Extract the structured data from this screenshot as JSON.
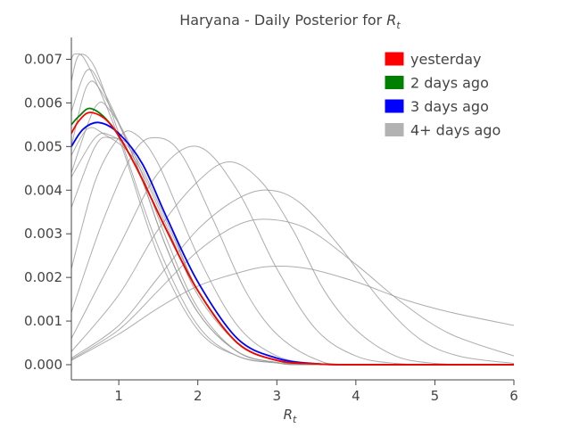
{
  "chart_data": {
    "type": "line",
    "title_prefix": "Haryana - Daily Posterior for ",
    "title_var": "R",
    "title_sub": "t",
    "xlabel_var": "R",
    "xlabel_sub": "t",
    "ylabel": "",
    "xlim": [
      0.4,
      6
    ],
    "ylim": [
      0,
      0.0075
    ],
    "x_ticks": [
      1,
      2,
      3,
      4,
      5,
      6
    ],
    "x_tick_labels": [
      "1",
      "2",
      "3",
      "4",
      "5",
      "6"
    ],
    "y_ticks": [
      0,
      0.001,
      0.002,
      0.003,
      0.004,
      0.005,
      0.006,
      0.007
    ],
    "y_tick_labels": [
      "0.000",
      "0.001",
      "0.002",
      "0.003",
      "0.004",
      "0.005",
      "0.006",
      "0.007"
    ],
    "grid": false,
    "legend_position": "top-right",
    "legend": [
      {
        "label": "yesterday",
        "color": "#ff0000"
      },
      {
        "label": "2 days ago",
        "color": "#008000"
      },
      {
        "label": "3 days ago",
        "color": "#0000ff"
      },
      {
        "label": "4+ days ago",
        "color": "#b2b2b2"
      }
    ],
    "series": [
      {
        "group": "4+ days ago",
        "color": "#999999",
        "points": [
          [
            0.4,
            0.007
          ],
          [
            0.45,
            0.00712
          ],
          [
            0.6,
            0.0069
          ],
          [
            1.0,
            0.0052
          ],
          [
            1.5,
            0.0025
          ],
          [
            2.0,
            0.0008
          ],
          [
            2.5,
            0.0002
          ],
          [
            3.0,
            4e-05
          ],
          [
            3.5,
            0.0
          ],
          [
            6,
            0.0
          ]
        ]
      },
      {
        "group": "4+ days ago",
        "color": "#999999",
        "points": [
          [
            0.4,
            0.0065
          ],
          [
            0.5,
            0.0071
          ],
          [
            0.7,
            0.0068
          ],
          [
            1.0,
            0.0053
          ],
          [
            1.5,
            0.0027
          ],
          [
            2.0,
            0.0009
          ],
          [
            2.5,
            0.0002
          ],
          [
            3.0,
            4e-05
          ],
          [
            3.5,
            0.0
          ],
          [
            6,
            0.0
          ]
        ]
      },
      {
        "group": "4+ days ago",
        "color": "#999999",
        "points": [
          [
            0.4,
            0.0058
          ],
          [
            0.6,
            0.00675
          ],
          [
            0.8,
            0.0063
          ],
          [
            1.2,
            0.0047
          ],
          [
            1.6,
            0.0027
          ],
          [
            2.0,
            0.0012
          ],
          [
            2.5,
            0.0003
          ],
          [
            3.0,
            5e-05
          ],
          [
            3.5,
            0.0
          ],
          [
            6,
            0.0
          ]
        ]
      },
      {
        "group": "4+ days ago",
        "color": "#999999",
        "points": [
          [
            0.4,
            0.005
          ],
          [
            0.6,
            0.0064
          ],
          [
            0.8,
            0.0062
          ],
          [
            1.2,
            0.0047
          ],
          [
            1.6,
            0.0027
          ],
          [
            2.0,
            0.0012
          ],
          [
            2.5,
            0.0003
          ],
          [
            3.0,
            5e-05
          ],
          [
            3.5,
            0.0
          ],
          [
            6,
            0.0
          ]
        ]
      },
      {
        "group": "4+ days ago",
        "color": "#999999",
        "points": [
          [
            0.4,
            0.0044
          ],
          [
            0.7,
            0.0059
          ],
          [
            0.9,
            0.0058
          ],
          [
            1.2,
            0.0048
          ],
          [
            1.6,
            0.0029
          ],
          [
            2.0,
            0.0013
          ],
          [
            2.5,
            0.0003
          ],
          [
            3.0,
            5e-05
          ],
          [
            3.5,
            0.0
          ],
          [
            6,
            0.0
          ]
        ]
      },
      {
        "group": "4+ days ago",
        "color": "#999999",
        "points": [
          [
            0.4,
            0.0048
          ],
          [
            0.6,
            0.0054
          ],
          [
            0.8,
            0.0053
          ],
          [
            1.2,
            0.0047
          ],
          [
            1.6,
            0.0032
          ],
          [
            2.0,
            0.0016
          ],
          [
            2.5,
            0.0005
          ],
          [
            3.0,
            0.0001
          ],
          [
            3.5,
            0.0
          ],
          [
            6,
            0.0
          ]
        ]
      },
      {
        "group": "4+ days ago",
        "color": "#999999",
        "points": [
          [
            0.4,
            0.0043
          ],
          [
            0.7,
            0.0052
          ],
          [
            0.9,
            0.00525
          ],
          [
            1.2,
            0.0048
          ],
          [
            1.6,
            0.0033
          ],
          [
            2.0,
            0.0017
          ],
          [
            2.5,
            0.0005
          ],
          [
            3.0,
            0.0001
          ],
          [
            3.5,
            0.0
          ],
          [
            6,
            0.0
          ]
        ]
      },
      {
        "group": "4+ days ago",
        "color": "#999999",
        "points": [
          [
            0.4,
            0.0036
          ],
          [
            0.7,
            0.005
          ],
          [
            0.9,
            0.0052
          ],
          [
            1.2,
            0.0049
          ],
          [
            1.6,
            0.0034
          ],
          [
            2.0,
            0.0017
          ],
          [
            2.5,
            0.0005
          ],
          [
            3.0,
            0.0001
          ],
          [
            3.5,
            0.0
          ],
          [
            6,
            0.0
          ]
        ]
      },
      {
        "group": "4+ days ago",
        "color": "#999999",
        "points": [
          [
            0.4,
            0.0022
          ],
          [
            0.7,
            0.0042
          ],
          [
            1.0,
            0.0052
          ],
          [
            1.2,
            0.0053
          ],
          [
            1.5,
            0.0046
          ],
          [
            2.0,
            0.0025
          ],
          [
            2.5,
            0.0009
          ],
          [
            3.0,
            0.0002
          ],
          [
            3.5,
            3e-05
          ],
          [
            4.0,
            0.0
          ],
          [
            6,
            0.0
          ]
        ]
      },
      {
        "group": "4+ days ago",
        "color": "#999999",
        "points": [
          [
            0.4,
            0.0012
          ],
          [
            0.8,
            0.0033
          ],
          [
            1.2,
            0.0049
          ],
          [
            1.5,
            0.0052
          ],
          [
            1.8,
            0.0048
          ],
          [
            2.2,
            0.0033
          ],
          [
            2.6,
            0.0017
          ],
          [
            3.0,
            0.0007
          ],
          [
            3.5,
            0.00012
          ],
          [
            4.0,
            0.0
          ],
          [
            6,
            0.0
          ]
        ]
      },
      {
        "group": "4+ days ago",
        "color": "#999999",
        "points": [
          [
            0.4,
            0.0006
          ],
          [
            1.0,
            0.0027
          ],
          [
            1.5,
            0.0044
          ],
          [
            2.0,
            0.005
          ],
          [
            2.5,
            0.004
          ],
          [
            3.0,
            0.0022
          ],
          [
            3.5,
            0.0008
          ],
          [
            4.0,
            0.0002
          ],
          [
            4.5,
            3e-05
          ],
          [
            5.0,
            0.0
          ],
          [
            6,
            0.0
          ]
        ]
      },
      {
        "group": "4+ days ago",
        "color": "#999999",
        "points": [
          [
            0.4,
            0.0003
          ],
          [
            1.0,
            0.0016
          ],
          [
            1.5,
            0.0031
          ],
          [
            2.0,
            0.0042
          ],
          [
            2.4,
            0.00465
          ],
          [
            2.8,
            0.0042
          ],
          [
            3.2,
            0.0031
          ],
          [
            3.6,
            0.0017
          ],
          [
            4.0,
            0.0008
          ],
          [
            4.5,
            0.0002
          ],
          [
            5.0,
            3e-05
          ],
          [
            5.5,
            0.0
          ],
          [
            6,
            0.0
          ]
        ]
      },
      {
        "group": "4+ days ago",
        "color": "#999999",
        "points": [
          [
            0.4,
            0.00015
          ],
          [
            1.0,
            0.0009
          ],
          [
            1.5,
            0.002
          ],
          [
            2.0,
            0.0031
          ],
          [
            2.5,
            0.0038
          ],
          [
            2.9,
            0.004
          ],
          [
            3.3,
            0.0037
          ],
          [
            3.8,
            0.0027
          ],
          [
            4.3,
            0.0015
          ],
          [
            4.8,
            0.0006
          ],
          [
            5.3,
            0.0002
          ],
          [
            6.0,
            3e-05
          ]
        ]
      },
      {
        "group": "4+ days ago",
        "color": "#999999",
        "points": [
          [
            0.4,
            0.00012
          ],
          [
            1.0,
            0.0008
          ],
          [
            1.5,
            0.0017
          ],
          [
            2.0,
            0.0026
          ],
          [
            2.5,
            0.0032
          ],
          [
            2.9,
            0.00333
          ],
          [
            3.4,
            0.0031
          ],
          [
            4.0,
            0.0023
          ],
          [
            4.6,
            0.0014
          ],
          [
            5.2,
            0.0007
          ],
          [
            6.0,
            0.0002
          ]
        ]
      },
      {
        "group": "4+ days ago",
        "color": "#999999",
        "points": [
          [
            0.4,
            0.0001
          ],
          [
            1.0,
            0.0007
          ],
          [
            1.5,
            0.0013
          ],
          [
            2.0,
            0.0018
          ],
          [
            2.5,
            0.0021
          ],
          [
            2.9,
            0.00225
          ],
          [
            3.4,
            0.0022
          ],
          [
            4.0,
            0.0019
          ],
          [
            4.6,
            0.0015
          ],
          [
            5.2,
            0.0012
          ],
          [
            6.0,
            0.0009
          ]
        ]
      },
      {
        "group": "3 days ago",
        "color": "#0000ff",
        "points": [
          [
            0.4,
            0.005
          ],
          [
            0.55,
            0.0054
          ],
          [
            0.75,
            0.00555
          ],
          [
            1.0,
            0.0053
          ],
          [
            1.3,
            0.0046
          ],
          [
            1.6,
            0.0034
          ],
          [
            2.0,
            0.0019
          ],
          [
            2.5,
            0.0006
          ],
          [
            3.0,
            0.00015
          ],
          [
            3.5,
            2e-05
          ],
          [
            4.0,
            0.0
          ],
          [
            6,
            0.0
          ]
        ]
      },
      {
        "group": "2 days ago",
        "color": "#008000",
        "points": [
          [
            0.4,
            0.0055
          ],
          [
            0.5,
            0.0057
          ],
          [
            0.65,
            0.00587
          ],
          [
            0.9,
            0.0055
          ],
          [
            1.2,
            0.0046
          ],
          [
            1.6,
            0.0031
          ],
          [
            2.0,
            0.0017
          ],
          [
            2.5,
            0.0005
          ],
          [
            3.0,
            0.0001
          ],
          [
            3.5,
            2e-05
          ],
          [
            4.0,
            0.0
          ],
          [
            6,
            0.0
          ]
        ]
      },
      {
        "group": "yesterday",
        "color": "#ff0000",
        "points": [
          [
            0.4,
            0.0053
          ],
          [
            0.5,
            0.0056
          ],
          [
            0.65,
            0.00578
          ],
          [
            0.9,
            0.0055
          ],
          [
            1.2,
            0.0046
          ],
          [
            1.6,
            0.0031
          ],
          [
            2.0,
            0.0017
          ],
          [
            2.5,
            0.0005
          ],
          [
            3.0,
            0.0001
          ],
          [
            3.5,
            2e-05
          ],
          [
            4.0,
            0.0
          ],
          [
            6,
            0.0
          ]
        ]
      }
    ]
  }
}
